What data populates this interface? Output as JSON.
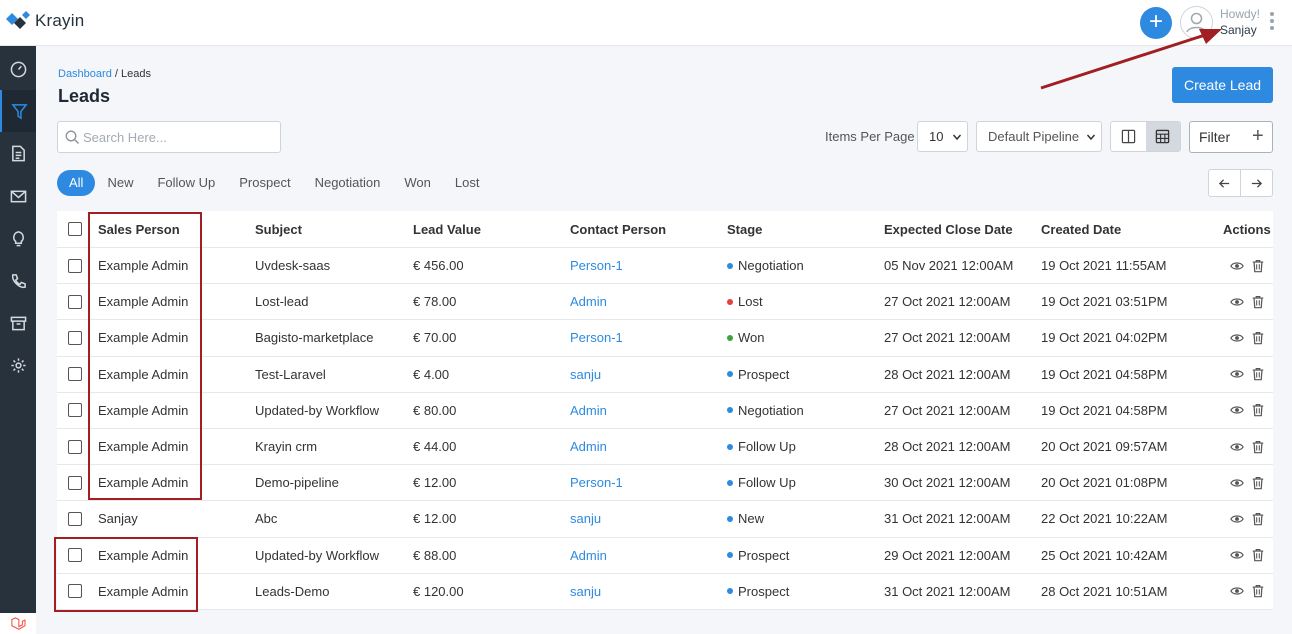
{
  "app": {
    "name": "Krayin",
    "brand_color": "#2d8ae0",
    "sidebar_color": "#27323d"
  },
  "topbar": {
    "greeting": "Howdy!",
    "user_name": "Sanjay"
  },
  "sidebar": {
    "items": [
      {
        "icon": "dashboard-icon",
        "active": false
      },
      {
        "icon": "funnel-icon",
        "active": true
      },
      {
        "icon": "document-icon",
        "active": false
      },
      {
        "icon": "mail-icon",
        "active": false
      },
      {
        "icon": "lightbulb-icon",
        "active": false
      },
      {
        "icon": "phone-icon",
        "active": false
      },
      {
        "icon": "archive-icon",
        "active": false
      },
      {
        "icon": "settings-icon",
        "active": false
      }
    ]
  },
  "breadcrumb": {
    "home": "Dashboard",
    "separator": "/",
    "current": "Leads"
  },
  "page": {
    "title": "Leads",
    "create_button": "Create Lead"
  },
  "toolbar": {
    "search_placeholder": "Search Here...",
    "items_per_page_label": "Items Per Page",
    "items_per_page_value": "10",
    "pipeline_value": "Default Pipeline",
    "filter_label": "Filter"
  },
  "tabs": [
    "All",
    "New",
    "Follow Up",
    "Prospect",
    "Negotiation",
    "Won",
    "Lost"
  ],
  "table": {
    "headers": {
      "sales_person": "Sales Person",
      "subject": "Subject",
      "lead_value": "Lead Value",
      "contact_person": "Contact Person",
      "stage": "Stage",
      "expected_close": "Expected Close Date",
      "created": "Created Date",
      "actions": "Actions"
    },
    "rows": [
      {
        "sales_person": "Example Admin",
        "subject": "Uvdesk-saas",
        "lead_value": "€ 456.00",
        "contact_person": "Person-1",
        "stage": "Negotiation",
        "stage_color": "#2d8ae0",
        "expected_close": "05 Nov 2021 12:00AM",
        "created": "19 Oct 2021 11:55AM"
      },
      {
        "sales_person": "Example Admin",
        "subject": "Lost-lead",
        "lead_value": "€ 78.00",
        "contact_person": "Admin",
        "stage": "Lost",
        "stage_color": "#e53e3e",
        "expected_close": "27 Oct 2021 12:00AM",
        "created": "19 Oct 2021 03:51PM"
      },
      {
        "sales_person": "Example Admin",
        "subject": "Bagisto-marketplace",
        "lead_value": "€ 70.00",
        "contact_person": "Person-1",
        "stage": "Won",
        "stage_color": "#3aa63a",
        "expected_close": "27 Oct 2021 12:00AM",
        "created": "19 Oct 2021 04:02PM"
      },
      {
        "sales_person": "Example Admin",
        "subject": "Test-Laravel",
        "lead_value": "€ 4.00",
        "contact_person": "sanju",
        "stage": "Prospect",
        "stage_color": "#2d8ae0",
        "expected_close": "28 Oct 2021 12:00AM",
        "created": "19 Oct 2021 04:58PM"
      },
      {
        "sales_person": "Example Admin",
        "subject": "Updated-by Workflow",
        "lead_value": "€ 80.00",
        "contact_person": "Admin",
        "stage": "Negotiation",
        "stage_color": "#2d8ae0",
        "expected_close": "27 Oct 2021 12:00AM",
        "created": "19 Oct 2021 04:58PM"
      },
      {
        "sales_person": "Example Admin",
        "subject": "Krayin crm",
        "lead_value": "€ 44.00",
        "contact_person": "Admin",
        "stage": "Follow Up",
        "stage_color": "#2d8ae0",
        "expected_close": "28 Oct 2021 12:00AM",
        "created": "20 Oct 2021 09:57AM"
      },
      {
        "sales_person": "Example Admin",
        "subject": "Demo-pipeline",
        "lead_value": "€ 12.00",
        "contact_person": "Person-1",
        "stage": "Follow Up",
        "stage_color": "#2d8ae0",
        "expected_close": "30 Oct 2021 12:00AM",
        "created": "20 Oct 2021 01:08PM"
      },
      {
        "sales_person": "Sanjay",
        "subject": "Abc",
        "lead_value": "€ 12.00",
        "contact_person": "sanju",
        "stage": "New",
        "stage_color": "#2d8ae0",
        "expected_close": "31 Oct 2021 12:00AM",
        "created": "22 Oct 2021 10:22AM"
      },
      {
        "sales_person": "Example Admin",
        "subject": "Updated-by Workflow",
        "lead_value": "€ 88.00",
        "contact_person": "Admin",
        "stage": "Prospect",
        "stage_color": "#2d8ae0",
        "expected_close": "29 Oct 2021 12:00AM",
        "created": "25 Oct 2021 10:42AM"
      },
      {
        "sales_person": "Example Admin",
        "subject": "Leads-Demo",
        "lead_value": "€ 120.00",
        "contact_person": "sanju",
        "stage": "Prospect",
        "stage_color": "#2d8ae0",
        "expected_close": "31 Oct 2021 12:00AM",
        "created": "28 Oct 2021 10:51AM"
      }
    ]
  },
  "annotation_color": "#a11f23"
}
